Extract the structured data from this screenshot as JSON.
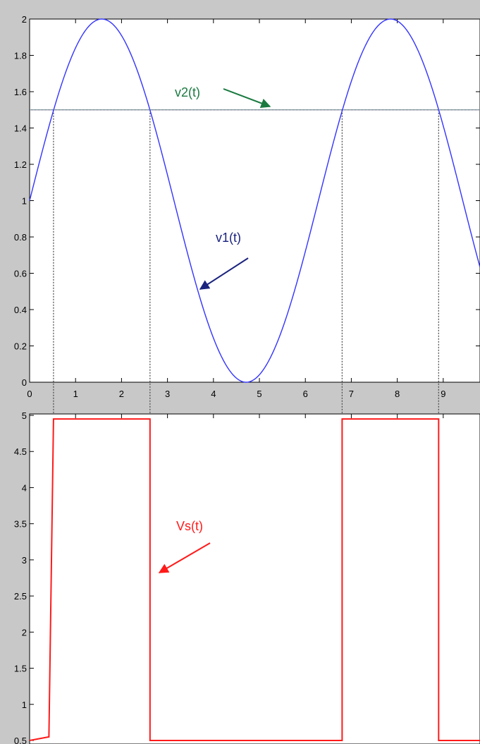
{
  "chart_data": [
    {
      "type": "line",
      "title": "",
      "xlabel": "",
      "ylabel": "",
      "xlim": [
        0,
        9.8
      ],
      "ylim": [
        0,
        2
      ],
      "x_ticks": [
        "0",
        "1",
        "2",
        "3",
        "4",
        "5",
        "6",
        "7",
        "8",
        "9"
      ],
      "y_ticks": [
        "0",
        "0.2",
        "0.4",
        "0.6",
        "0.8",
        "1",
        "1.2",
        "1.4",
        "1.6",
        "1.8",
        "2"
      ],
      "grid": false,
      "series": [
        {
          "name": "v1(t)",
          "color": "#3333ff",
          "function": "1 + sin(t)",
          "x": [
            0,
            0.5,
            1,
            1.5,
            2,
            2.5,
            3,
            3.5,
            4,
            4.5,
            5,
            5.5,
            6,
            6.5,
            7,
            7.5,
            8,
            8.5,
            9,
            9.5,
            9.8
          ],
          "y": [
            1,
            1.48,
            1.84,
            2.0,
            1.91,
            1.6,
            1.14,
            0.65,
            0.24,
            0.02,
            0.04,
            0.29,
            0.72,
            1.22,
            1.66,
            1.94,
            1.99,
            1.8,
            1.41,
            0.92,
            0.63
          ]
        },
        {
          "name": "v2(t)",
          "color": "#2e8b57",
          "x": [
            0,
            9.8
          ],
          "y": [
            1.5,
            1.5
          ]
        }
      ],
      "crossing_times": [
        0.52,
        2.62,
        6.8,
        8.9
      ],
      "annotations": [
        {
          "text": "v2(t)",
          "color": "#1a7a40"
        },
        {
          "text": "v1(t)",
          "color": "#1a237e"
        }
      ]
    },
    {
      "type": "line",
      "title": "",
      "xlabel": "",
      "ylabel": "",
      "xlim": [
        0,
        9.8
      ],
      "ylim": [
        0.5,
        5
      ],
      "y_ticks": [
        "0.5",
        "1",
        "1.5",
        "2",
        "2.5",
        "3",
        "3.5",
        "4",
        "4.5",
        "5"
      ],
      "grid": false,
      "series": [
        {
          "name": "Vs(t)",
          "color": "#ff1a1a",
          "x": [
            0,
            0.42,
            0.52,
            2.62,
            2.62,
            6.8,
            6.8,
            8.9,
            8.9,
            9.8
          ],
          "y": [
            0.5,
            0.55,
            4.95,
            4.95,
            0.5,
            0.5,
            4.95,
            4.95,
            0.5,
            0.5
          ]
        }
      ],
      "annotations": [
        {
          "text": "Vs(t)",
          "color": "#ff1a1a"
        }
      ]
    }
  ]
}
